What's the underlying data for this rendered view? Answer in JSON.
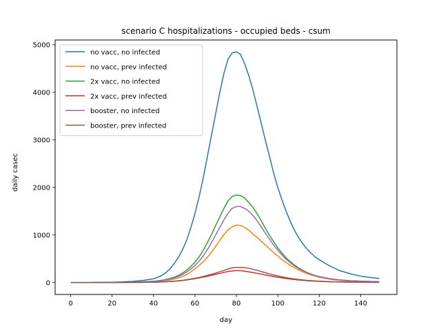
{
  "chart_data": {
    "type": "line",
    "title": "scenario C hospitalizations - occupied beds - csum",
    "xlabel": "day",
    "ylabel": "daily casec",
    "xlim": [
      -7.5,
      157.5
    ],
    "ylim": [
      -250,
      5100
    ],
    "xticks": [
      0,
      20,
      40,
      60,
      80,
      100,
      120,
      140
    ],
    "yticks": [
      0,
      1000,
      2000,
      3000,
      4000,
      5000
    ],
    "legend": "top-left",
    "grid": false,
    "x": [
      0,
      5,
      10,
      15,
      20,
      25,
      30,
      35,
      40,
      42,
      44,
      46,
      48,
      50,
      52,
      54,
      56,
      58,
      60,
      62,
      64,
      66,
      68,
      70,
      72,
      74,
      76,
      78,
      80,
      82,
      84,
      86,
      88,
      90,
      92,
      94,
      96,
      98,
      100,
      102,
      104,
      106,
      108,
      110,
      112,
      114,
      116,
      118,
      120,
      125,
      130,
      135,
      140,
      145,
      149
    ],
    "series": [
      {
        "name": "no vacc, no infected",
        "color": "#1f77b4",
        "values": [
          2,
          2,
          3,
          5,
          8,
          14,
          25,
          45,
          80,
          110,
          150,
          210,
          290,
          400,
          530,
          690,
          890,
          1150,
          1450,
          1800,
          2200,
          2650,
          3100,
          3550,
          4000,
          4400,
          4700,
          4830,
          4850,
          4800,
          4600,
          4350,
          4050,
          3700,
          3350,
          2990,
          2650,
          2300,
          2000,
          1740,
          1500,
          1290,
          1100,
          950,
          820,
          710,
          620,
          540,
          480,
          350,
          250,
          185,
          135,
          105,
          85
        ]
      },
      {
        "name": "no vacc, prev infected",
        "color": "#ff7f0e",
        "values": [
          0,
          0,
          0,
          1,
          2,
          3,
          6,
          10,
          18,
          24,
          32,
          43,
          57,
          75,
          100,
          130,
          170,
          225,
          290,
          360,
          440,
          530,
          640,
          760,
          890,
          1010,
          1110,
          1170,
          1210,
          1200,
          1160,
          1100,
          1020,
          950,
          870,
          790,
          710,
          630,
          560,
          480,
          420,
          360,
          310,
          265,
          225,
          190,
          160,
          135,
          110,
          70,
          45,
          30,
          20,
          15,
          12
        ]
      },
      {
        "name": "2x vacc, no infected",
        "color": "#2ca02c",
        "values": [
          0,
          0,
          1,
          2,
          3,
          5,
          9,
          16,
          28,
          37,
          50,
          66,
          88,
          115,
          150,
          200,
          260,
          340,
          430,
          540,
          680,
          840,
          1010,
          1200,
          1380,
          1560,
          1720,
          1810,
          1840,
          1830,
          1780,
          1680,
          1580,
          1450,
          1300,
          1140,
          990,
          860,
          730,
          620,
          520,
          440,
          370,
          310,
          260,
          215,
          180,
          150,
          125,
          80,
          55,
          40,
          30,
          22,
          18
        ]
      },
      {
        "name": "2x vacc, prev infected",
        "color": "#d62728",
        "values": [
          0,
          0,
          0,
          0,
          1,
          2,
          3,
          5,
          8,
          10,
          13,
          17,
          22,
          28,
          35,
          44,
          55,
          68,
          82,
          98,
          115,
          133,
          152,
          172,
          193,
          213,
          232,
          245,
          250,
          250,
          240,
          225,
          210,
          195,
          178,
          160,
          143,
          127,
          112,
          98,
          85,
          74,
          64,
          55,
          47,
          40,
          34,
          29,
          25,
          17,
          12,
          9,
          7,
          6,
          5
        ]
      },
      {
        "name": "booster, no infected",
        "color": "#9467bd",
        "values": [
          0,
          0,
          1,
          2,
          3,
          5,
          8,
          14,
          25,
          33,
          44,
          58,
          77,
          100,
          130,
          170,
          220,
          285,
          360,
          450,
          560,
          690,
          840,
          1000,
          1160,
          1320,
          1460,
          1560,
          1600,
          1600,
          1560,
          1500,
          1410,
          1300,
          1170,
          1040,
          910,
          790,
          680,
          580,
          490,
          420,
          350,
          295,
          250,
          210,
          175,
          148,
          125,
          82,
          56,
          40,
          30,
          23,
          19
        ]
      },
      {
        "name": "booster, prev infected",
        "color": "#8c564b",
        "values": [
          0,
          0,
          0,
          0,
          1,
          2,
          3,
          5,
          9,
          11,
          14,
          18,
          24,
          30,
          38,
          48,
          60,
          74,
          90,
          108,
          128,
          150,
          175,
          200,
          228,
          255,
          285,
          310,
          320,
          320,
          315,
          300,
          280,
          258,
          232,
          207,
          182,
          160,
          140,
          121,
          104,
          89,
          76,
          65,
          55,
          47,
          40,
          34,
          29,
          20,
          14,
          10,
          8,
          6,
          5
        ]
      }
    ]
  }
}
